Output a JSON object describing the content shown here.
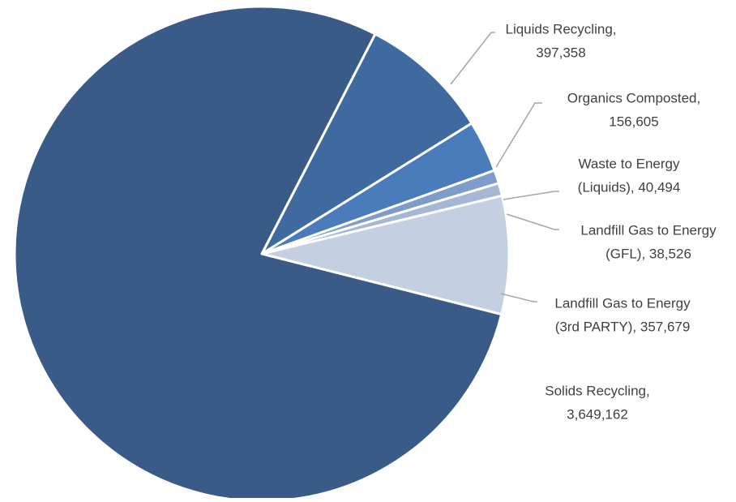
{
  "chart_data": {
    "type": "pie",
    "title": "",
    "slices": [
      {
        "name": "Liquids Recycling",
        "value": 397358,
        "label_line1": "Liquids Recycling,",
        "label_line2": "397,358",
        "color": "#3f6aa0"
      },
      {
        "name": "Organics Composted",
        "value": 156605,
        "label_line1": "Organics Composted,",
        "label_line2": "156,605",
        "color": "#4a7bbb"
      },
      {
        "name": "Waste to Energy (Liquids)",
        "value": 40494,
        "label_line1": "Waste to Energy",
        "label_line2": "(Liquids),  40,494",
        "color": "#7e9cc9"
      },
      {
        "name": "Landfill Gas to Energy (GFL)",
        "value": 38526,
        "label_line1": "Landfill Gas to Energy",
        "label_line2": "(GFL),  38,526",
        "color": "#a6b7d6"
      },
      {
        "name": "Landfill Gas to Energy (3rd PARTY)",
        "value": 357679,
        "label_line1": "Landfill Gas to Energy",
        "label_line2": "(3rd PARTY),  357,679",
        "color": "#c4cfe2"
      },
      {
        "name": "Solids Recycling",
        "value": 3649162,
        "label_line1": "Solids Recycling,",
        "label_line2": "3,649,162",
        "color": "#3a5b87"
      }
    ],
    "legend": "none",
    "label_style": "outside-with-leader-lines",
    "start": "Liquids Recycling slice begins at upper right, slices proceed clockwise"
  }
}
